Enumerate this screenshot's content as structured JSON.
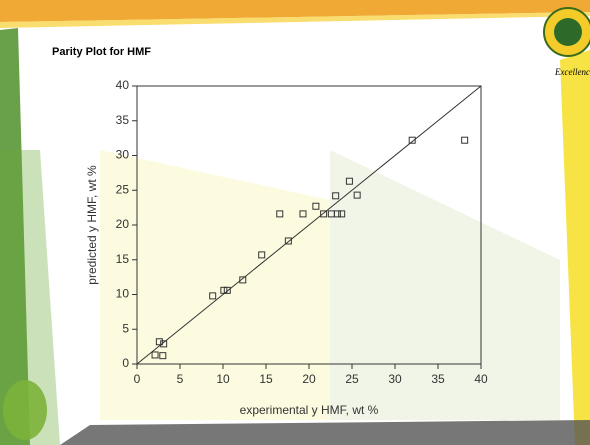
{
  "tagline": "Excellence",
  "chart_data": {
    "type": "scatter",
    "title": "Parity Plot for HMF",
    "x_label": "experimental y HMF, wt %",
    "y_label": "predicted y HMF, wt %",
    "x": [
      2.1,
      2.6,
      3.1,
      3.0,
      8.8,
      10.1,
      10.5,
      12.3,
      14.5,
      16.6,
      17.6,
      19.3,
      20.8,
      21.7,
      22.6,
      23.1,
      23.3,
      23.8,
      24.7,
      25.6,
      32.0,
      38.1
    ],
    "series": [
      {
        "color": "#333333",
        "values": [
          1.3,
          3.2,
          2.9,
          1.2,
          9.8,
          10.6,
          10.6,
          12.1,
          15.7,
          21.6,
          17.7,
          21.6,
          22.7,
          21.6,
          21.6,
          24.2,
          21.6,
          21.6,
          26.3,
          24.3,
          32.2,
          32.2
        ]
      }
    ],
    "reference_line": {
      "x": [
        0,
        40
      ],
      "y": [
        0,
        40
      ]
    },
    "xlim": [
      0,
      40
    ],
    "ylim": [
      0,
      40
    ],
    "xticks": [
      0,
      5,
      10,
      15,
      20,
      25,
      30,
      35,
      40
    ],
    "yticks": [
      0,
      5,
      10,
      15,
      20,
      25,
      30,
      35,
      40
    ]
  }
}
